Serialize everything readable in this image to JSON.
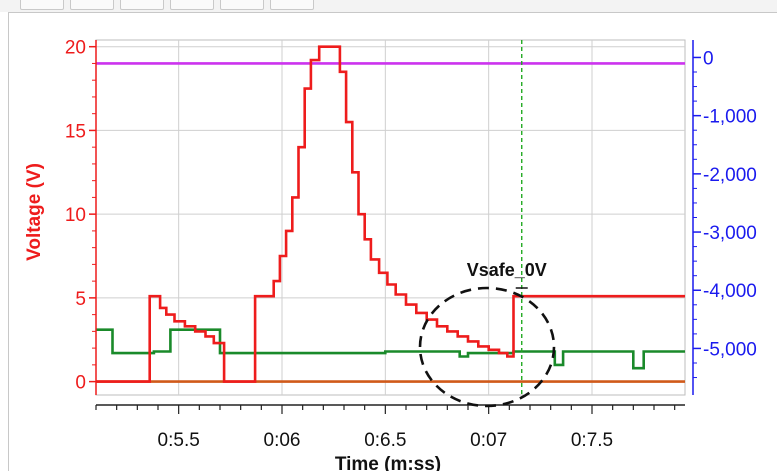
{
  "chart_data": {
    "type": "line",
    "xlabel": "Time (m:ss)",
    "ylabel": "Voltage (V)",
    "x_domain": [
      5.1,
      7.95
    ],
    "y_left_domain": [
      -0.8,
      20.4
    ],
    "y_right_domain": [
      -5800,
      300
    ],
    "x_ticks": [
      {
        "v": 5.5,
        "label": "0:5.5"
      },
      {
        "v": 6.0,
        "label": "0:06"
      },
      {
        "v": 6.5,
        "label": "0:6.5"
      },
      {
        "v": 7.0,
        "label": "0:07"
      },
      {
        "v": 7.5,
        "label": "0:7.5"
      }
    ],
    "y_left_ticks": [
      {
        "v": 0,
        "label": "0"
      },
      {
        "v": 5,
        "label": "5"
      },
      {
        "v": 10,
        "label": "10"
      },
      {
        "v": 15,
        "label": "15"
      },
      {
        "v": 20,
        "label": "20"
      }
    ],
    "y_right_ticks": [
      {
        "v": 0,
        "label": "0"
      },
      {
        "v": -1000,
        "label": "-1,000"
      },
      {
        "v": -2000,
        "label": "-2,000"
      },
      {
        "v": -3000,
        "label": "-3,000"
      },
      {
        "v": -4000,
        "label": "-4,000"
      },
      {
        "v": -5000,
        "label": "-5,000"
      }
    ],
    "annotation": {
      "text": "Vsafe_0V",
      "x": 7.16
    },
    "grid": true,
    "colors": {
      "red": "#ee1c1c",
      "green": "#1a8a2a",
      "magenta": "#cc33ee",
      "orange": "#d05a1a",
      "blue": "#1a1aee",
      "grid": "#cfcfcf",
      "marker": "#22aa22"
    },
    "series": [
      {
        "color": "red",
        "axis": "left",
        "step": true,
        "points": [
          [
            5.1,
            0
          ],
          [
            5.36,
            0
          ],
          [
            5.36,
            5.1
          ],
          [
            5.41,
            5.1
          ],
          [
            5.41,
            4.4
          ],
          [
            5.44,
            4.4
          ],
          [
            5.44,
            4.0
          ],
          [
            5.48,
            4.0
          ],
          [
            5.48,
            3.6
          ],
          [
            5.53,
            3.6
          ],
          [
            5.53,
            3.3
          ],
          [
            5.58,
            3.3
          ],
          [
            5.58,
            3.0
          ],
          [
            5.63,
            3.0
          ],
          [
            5.63,
            2.7
          ],
          [
            5.67,
            2.7
          ],
          [
            5.67,
            2.3
          ],
          [
            5.72,
            2.3
          ],
          [
            5.72,
            0
          ],
          [
            5.87,
            0
          ],
          [
            5.87,
            5.1
          ],
          [
            5.96,
            5.1
          ],
          [
            5.96,
            6.0
          ],
          [
            5.99,
            6.0
          ],
          [
            5.99,
            7.5
          ],
          [
            6.02,
            7.5
          ],
          [
            6.02,
            9.0
          ],
          [
            6.05,
            9.0
          ],
          [
            6.05,
            11.0
          ],
          [
            6.08,
            11.0
          ],
          [
            6.08,
            14.0
          ],
          [
            6.11,
            14.0
          ],
          [
            6.11,
            17.5
          ],
          [
            6.14,
            17.5
          ],
          [
            6.14,
            19.2
          ],
          [
            6.18,
            19.2
          ],
          [
            6.18,
            20.0
          ],
          [
            6.28,
            20.0
          ],
          [
            6.28,
            18.5
          ],
          [
            6.31,
            18.5
          ],
          [
            6.31,
            15.5
          ],
          [
            6.34,
            15.5
          ],
          [
            6.34,
            12.5
          ],
          [
            6.37,
            12.5
          ],
          [
            6.37,
            10.0
          ],
          [
            6.4,
            10.0
          ],
          [
            6.4,
            8.5
          ],
          [
            6.43,
            8.5
          ],
          [
            6.43,
            7.3
          ],
          [
            6.47,
            7.3
          ],
          [
            6.47,
            6.5
          ],
          [
            6.51,
            6.5
          ],
          [
            6.51,
            5.8
          ],
          [
            6.55,
            5.8
          ],
          [
            6.55,
            5.2
          ],
          [
            6.6,
            5.2
          ],
          [
            6.6,
            4.6
          ],
          [
            6.65,
            4.6
          ],
          [
            6.65,
            4.1
          ],
          [
            6.7,
            4.1
          ],
          [
            6.7,
            3.7
          ],
          [
            6.75,
            3.7
          ],
          [
            6.75,
            3.3
          ],
          [
            6.8,
            3.3
          ],
          [
            6.8,
            3.0
          ],
          [
            6.85,
            3.0
          ],
          [
            6.85,
            2.7
          ],
          [
            6.9,
            2.7
          ],
          [
            6.9,
            2.4
          ],
          [
            6.95,
            2.4
          ],
          [
            6.95,
            2.1
          ],
          [
            7.0,
            2.1
          ],
          [
            7.0,
            1.9
          ],
          [
            7.05,
            1.9
          ],
          [
            7.05,
            1.7
          ],
          [
            7.09,
            1.7
          ],
          [
            7.09,
            1.5
          ],
          [
            7.12,
            1.5
          ],
          [
            7.12,
            5.1
          ],
          [
            7.95,
            5.1
          ]
        ]
      },
      {
        "color": "green",
        "axis": "left",
        "step": true,
        "points": [
          [
            5.1,
            3.1
          ],
          [
            5.18,
            3.1
          ],
          [
            5.18,
            1.7
          ],
          [
            5.38,
            1.7
          ],
          [
            5.38,
            1.8
          ],
          [
            5.46,
            1.8
          ],
          [
            5.46,
            3.1
          ],
          [
            5.7,
            3.1
          ],
          [
            5.7,
            1.7
          ],
          [
            6.5,
            1.7
          ],
          [
            6.5,
            1.8
          ],
          [
            6.86,
            1.8
          ],
          [
            6.86,
            1.5
          ],
          [
            6.9,
            1.5
          ],
          [
            6.9,
            1.7
          ],
          [
            7.12,
            1.7
          ],
          [
            7.12,
            1.8
          ],
          [
            7.32,
            1.8
          ],
          [
            7.32,
            1.0
          ],
          [
            7.36,
            1.0
          ],
          [
            7.36,
            1.8
          ],
          [
            7.7,
            1.8
          ],
          [
            7.7,
            0.8
          ],
          [
            7.75,
            0.8
          ],
          [
            7.75,
            1.8
          ],
          [
            7.95,
            1.8
          ]
        ]
      },
      {
        "color": "orange",
        "axis": "left",
        "step": false,
        "points": [
          [
            5.1,
            0
          ],
          [
            7.95,
            0
          ]
        ]
      },
      {
        "color": "magenta",
        "axis": "left",
        "step": false,
        "points": [
          [
            5.1,
            19.0
          ],
          [
            7.95,
            19.0
          ]
        ]
      }
    ]
  }
}
